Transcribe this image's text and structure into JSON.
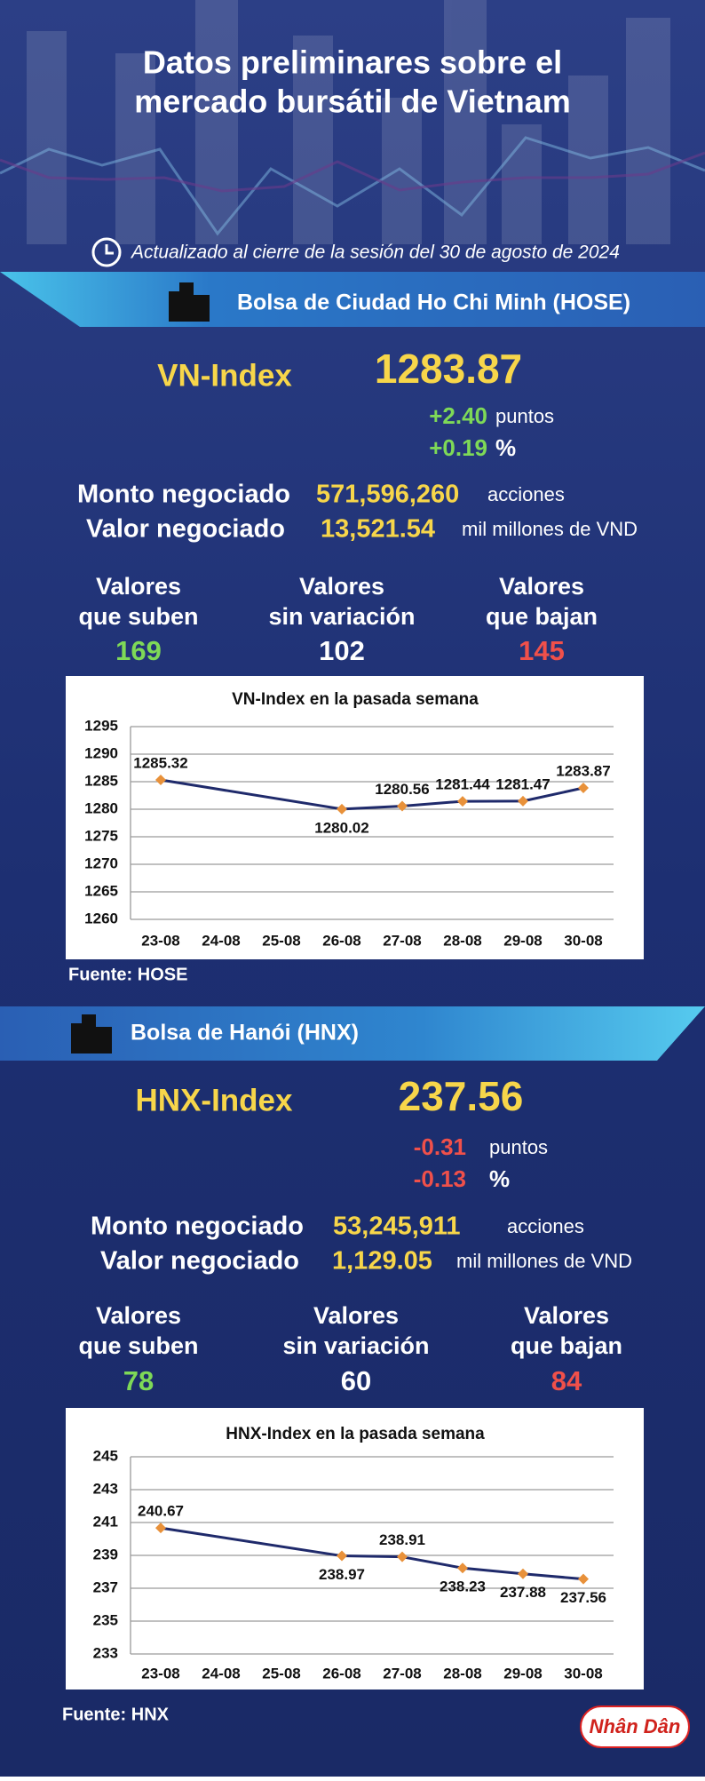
{
  "header": {
    "title_lines": [
      "Datos preliminares sobre el",
      "mercado bursátil de Vietnam"
    ],
    "updated": "Actualizado al cierre de la sesión del 30 de agosto de 2024"
  },
  "exchanges": [
    {
      "name": "Bolsa de Ciudad Ho Chi Minh (HOSE)",
      "index_name": "VN-Index",
      "index_value": "1283.87",
      "change_points": "+2.40",
      "points_unit": "puntos",
      "change_pct": "+0.19",
      "pct_unit": "%",
      "volume_label": "Monto negociado",
      "volume": "571,596,260",
      "volume_unit": "acciones",
      "value_label": "Valor negociado",
      "value": "13,521.54",
      "value_unit": "mil millones de VND",
      "breadth": [
        {
          "label_lines": [
            "Valores",
            "que suben"
          ],
          "count": "169"
        },
        {
          "label_lines": [
            "Valores",
            "sin variación"
          ],
          "count": "102"
        },
        {
          "label_lines": [
            "Valores",
            "que bajan"
          ],
          "count": "145"
        }
      ],
      "source": "Fuente: HOSE"
    },
    {
      "name": "Bolsa de Hanói (HNX)",
      "index_name": "HNX-Index",
      "index_value": "237.56",
      "change_points": "-0.31",
      "points_unit": "puntos",
      "change_pct": "-0.13",
      "pct_unit": "%",
      "volume_label": "Monto negociado",
      "volume": "53,245,911",
      "volume_unit": "acciones",
      "value_label": "Valor negociado",
      "value": "1,129.05",
      "value_unit": "mil millones de VND",
      "breadth": [
        {
          "label_lines": [
            "Valores",
            "que suben"
          ],
          "count": "78"
        },
        {
          "label_lines": [
            "Valores",
            "sin variación"
          ],
          "count": "60"
        },
        {
          "label_lines": [
            "Valores",
            "que bajan"
          ],
          "count": "84"
        }
      ],
      "source": "Fuente: HNX"
    }
  ],
  "chart_data": [
    {
      "type": "line",
      "title": "VN-Index en la pasada semana",
      "categories": [
        "23-08",
        "24-08",
        "25-08",
        "26-08",
        "27-08",
        "28-08",
        "29-08",
        "30-08"
      ],
      "values": [
        1285.32,
        null,
        null,
        1280.02,
        1280.56,
        1281.44,
        1281.47,
        1283.87
      ],
      "color": "#1f2a6b",
      "marker_color": "#e8913a",
      "ylim": [
        1260,
        1295
      ],
      "yticks": [
        1260,
        1265,
        1270,
        1275,
        1280,
        1285,
        1290,
        1295
      ],
      "grid": true
    },
    {
      "type": "line",
      "title": "HNX-Index en la pasada semana",
      "categories": [
        "23-08",
        "24-08",
        "25-08",
        "26-08",
        "27-08",
        "28-08",
        "29-08",
        "30-08"
      ],
      "values": [
        240.67,
        null,
        null,
        238.97,
        238.91,
        238.23,
        237.88,
        237.56
      ],
      "color": "#1f2a6b",
      "marker_color": "#e8913a",
      "ylim": [
        233,
        245
      ],
      "yticks": [
        233,
        235,
        237,
        239,
        241,
        243,
        245
      ],
      "grid": true
    }
  ],
  "logo": "Nhân Dân"
}
